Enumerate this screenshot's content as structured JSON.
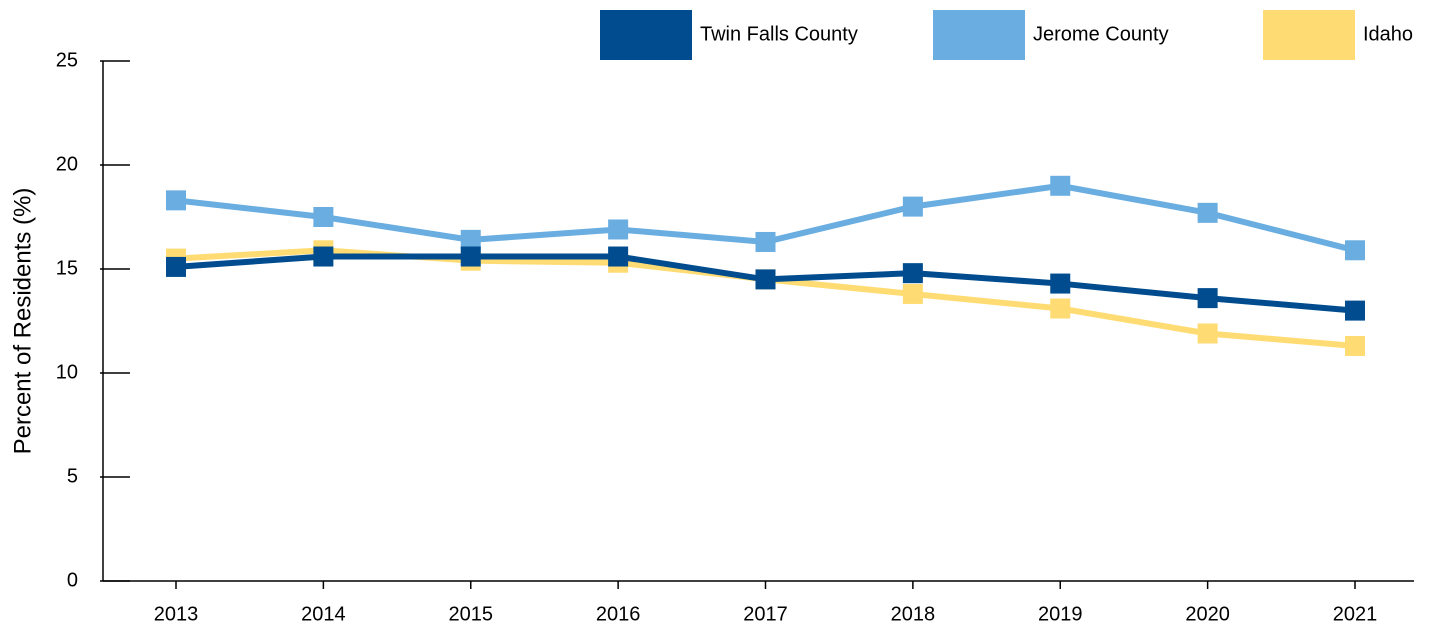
{
  "chart_data": {
    "type": "line",
    "y_label": "Percent of Residents (%)",
    "categories": [
      "2013",
      "2014",
      "2015",
      "2016",
      "2017",
      "2018",
      "2019",
      "2020",
      "2021"
    ],
    "series": [
      {
        "name": "Twin Falls County",
        "color": "#004c8f",
        "values": [
          15.1,
          15.6,
          15.6,
          15.6,
          14.5,
          14.8,
          14.3,
          13.6,
          13.0
        ]
      },
      {
        "name": "Jerome County",
        "color": "#6aade0",
        "values": [
          18.3,
          17.5,
          16.4,
          16.9,
          16.3,
          18.0,
          19.0,
          17.7,
          15.9
        ]
      },
      {
        "name": "Idaho",
        "color": "#ffdc73",
        "values": [
          15.5,
          15.9,
          15.4,
          15.3,
          14.5,
          13.8,
          13.1,
          11.9,
          11.3
        ]
      }
    ],
    "ylim": [
      0,
      25
    ],
    "yticks": [
      0,
      5,
      10,
      15,
      20,
      25
    ]
  }
}
